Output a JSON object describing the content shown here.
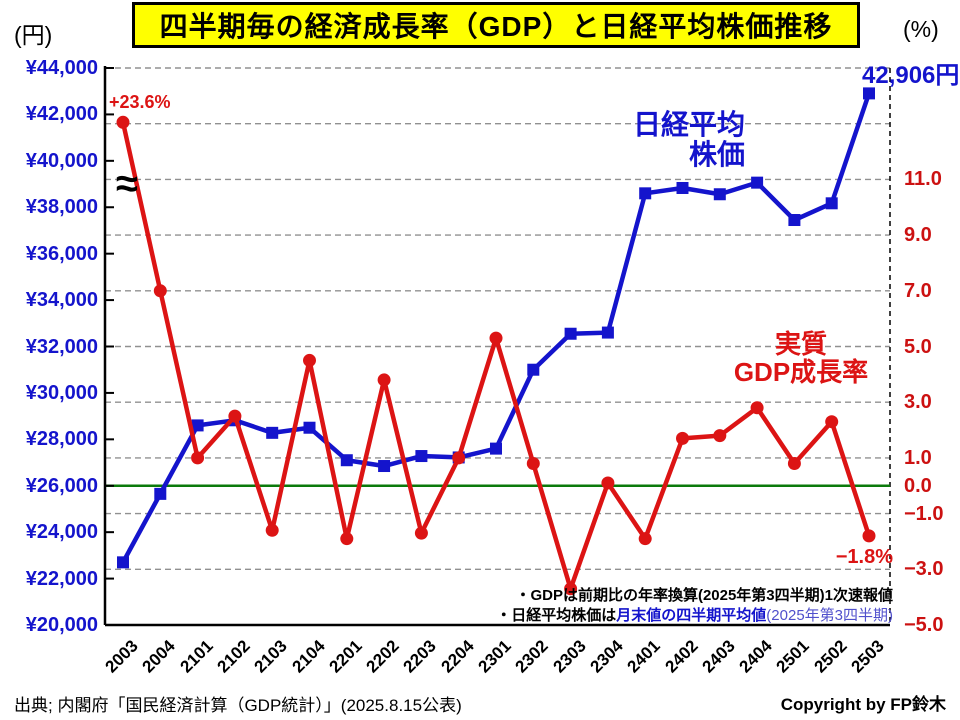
{
  "header": {
    "title": "四半期毎の経済成長率（GDP）と日経平均株価推移",
    "left_axis_unit": "(円)",
    "right_axis_unit": "(%)"
  },
  "chart_data": {
    "type": "line",
    "categories": [
      "2003",
      "2004",
      "2101",
      "2102",
      "2103",
      "2104",
      "2201",
      "2202",
      "2203",
      "2204",
      "2301",
      "2302",
      "2303",
      "2304",
      "2401",
      "2402",
      "2403",
      "2404",
      "2501",
      "2502",
      "2503"
    ],
    "series": [
      {
        "name": "日経平均株価",
        "axis": "left",
        "color": "#1414cc",
        "marker": "square",
        "values": [
          22700,
          25650,
          28600,
          28820,
          28280,
          28500,
          27100,
          26850,
          27280,
          27220,
          27600,
          31000,
          32550,
          32600,
          38600,
          38830,
          38560,
          39060,
          37450,
          38170,
          42906
        ]
      },
      {
        "name": "実質GDP成長率",
        "axis": "right",
        "color": "#dc1414",
        "marker": "circle",
        "values": [
          23.6,
          7.0,
          1.0,
          2.5,
          -1.6,
          4.5,
          -1.9,
          3.8,
          -1.7,
          1.0,
          5.3,
          0.8,
          -3.7,
          0.1,
          -1.9,
          1.7,
          1.8,
          2.8,
          0.8,
          2.3,
          -1.8
        ]
      }
    ],
    "left_axis": {
      "min": 20000,
      "max": 44000,
      "ticks": [
        {
          "v": 44000,
          "label": "¥44,000"
        },
        {
          "v": 42000,
          "label": "¥42,000"
        },
        {
          "v": 40000,
          "label": "¥40,000"
        },
        {
          "v": 38000,
          "label": "¥38,000"
        },
        {
          "v": 36000,
          "label": "¥36,000"
        },
        {
          "v": 34000,
          "label": "¥34,000"
        },
        {
          "v": 32000,
          "label": "¥32,000"
        },
        {
          "v": 30000,
          "label": "¥30,000"
        },
        {
          "v": 28000,
          "label": "¥28,000"
        },
        {
          "v": 26000,
          "label": "¥26,000"
        },
        {
          "v": 24000,
          "label": "¥24,000"
        },
        {
          "v": 22000,
          "label": "¥22,000"
        },
        {
          "v": 20000,
          "label": "¥20,000"
        }
      ]
    },
    "right_axis": {
      "min": -5,
      "max": 15,
      "ticks": [
        {
          "v": 11,
          "label": "11.0"
        },
        {
          "v": 9,
          "label": "9.0"
        },
        {
          "v": 7,
          "label": "7.0"
        },
        {
          "v": 5,
          "label": "5.0"
        },
        {
          "v": 3,
          "label": "3.0"
        },
        {
          "v": 1,
          "label": "1.0"
        },
        {
          "v": 0,
          "label": "0.0"
        },
        {
          "v": -1,
          "label": "−1.0"
        },
        {
          "v": -3,
          "label": "−3.0"
        },
        {
          "v": -5,
          "label": "−5.0"
        }
      ]
    },
    "gridline_percents": [
      15,
      13,
      11,
      9,
      7,
      5,
      3,
      1,
      -1,
      -3
    ],
    "zero_line": {
      "value": 0,
      "color": "#0b7a0b"
    },
    "axis_break_clamp": 13.05,
    "annotations": {
      "first_gdp_label": "+23.6%",
      "last_gdp_label": "−1.8%",
      "last_nikkei_label": "42,906円",
      "axis_break": "≈",
      "nikkei_series_label": [
        "日経平均",
        "株価"
      ],
      "gdp_series_label": [
        "実質",
        "GDP成長率"
      ]
    },
    "colors": {
      "grid": "#909090",
      "axis": "#000000"
    }
  },
  "notes": {
    "line1": "・GDPは前期比の年率換算(2025年第3四半期)1次速報値",
    "line2_prefix": "・日経平均株価は",
    "line2_highlight": "月末値の四半期平均値",
    "line2_suffix": "(2025年第3四半期)"
  },
  "footer": {
    "source": "出典; 内閣府「国民経済計算（GDP統計）」(2025.8.15公表)",
    "copyright": "Copyright by FP鈴木"
  }
}
